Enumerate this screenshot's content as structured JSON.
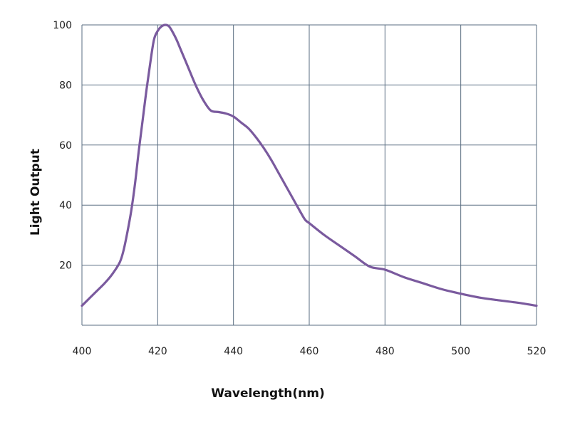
{
  "chart_data": {
    "type": "line",
    "title": "",
    "xlabel": "Wavelength(nm)",
    "ylabel": "Light Output",
    "xlim": [
      400,
      520
    ],
    "ylim": [
      0,
      100
    ],
    "grid": true,
    "x_ticks": [
      400,
      420,
      440,
      460,
      480,
      500,
      520
    ],
    "y_ticks": [
      20,
      40,
      60,
      80,
      100
    ],
    "line_color": "#7a5a9e",
    "grid_color": "#5a6e82",
    "series": [
      {
        "name": "",
        "x": [
          400,
          402,
          404,
          406,
          408,
          410,
          411,
          412,
          413,
          414,
          415,
          416,
          417,
          418,
          419,
          420,
          421,
          422,
          423,
          424,
          425,
          426,
          428,
          430,
          432,
          434,
          436,
          438,
          440,
          442,
          444,
          446,
          448,
          450,
          452,
          454,
          456,
          458,
          459,
          460,
          464,
          468,
          472,
          476,
          480,
          485,
          490,
          495,
          500,
          505,
          510,
          515,
          520
        ],
        "y": [
          6.5,
          9,
          11.5,
          14,
          17,
          21,
          25,
          31,
          38,
          47,
          58,
          68,
          78,
          87,
          95,
          98,
          99.5,
          100,
          99.5,
          97.5,
          95,
          92,
          86,
          80,
          75,
          71.5,
          71,
          70.5,
          69.5,
          67.5,
          65.5,
          62.5,
          59,
          55,
          50.5,
          46,
          41.5,
          37,
          35,
          34,
          30,
          26.5,
          23,
          19.5,
          18.5,
          16,
          14,
          12,
          10.5,
          9.2,
          8.3,
          7.5,
          6.5
        ]
      }
    ]
  }
}
